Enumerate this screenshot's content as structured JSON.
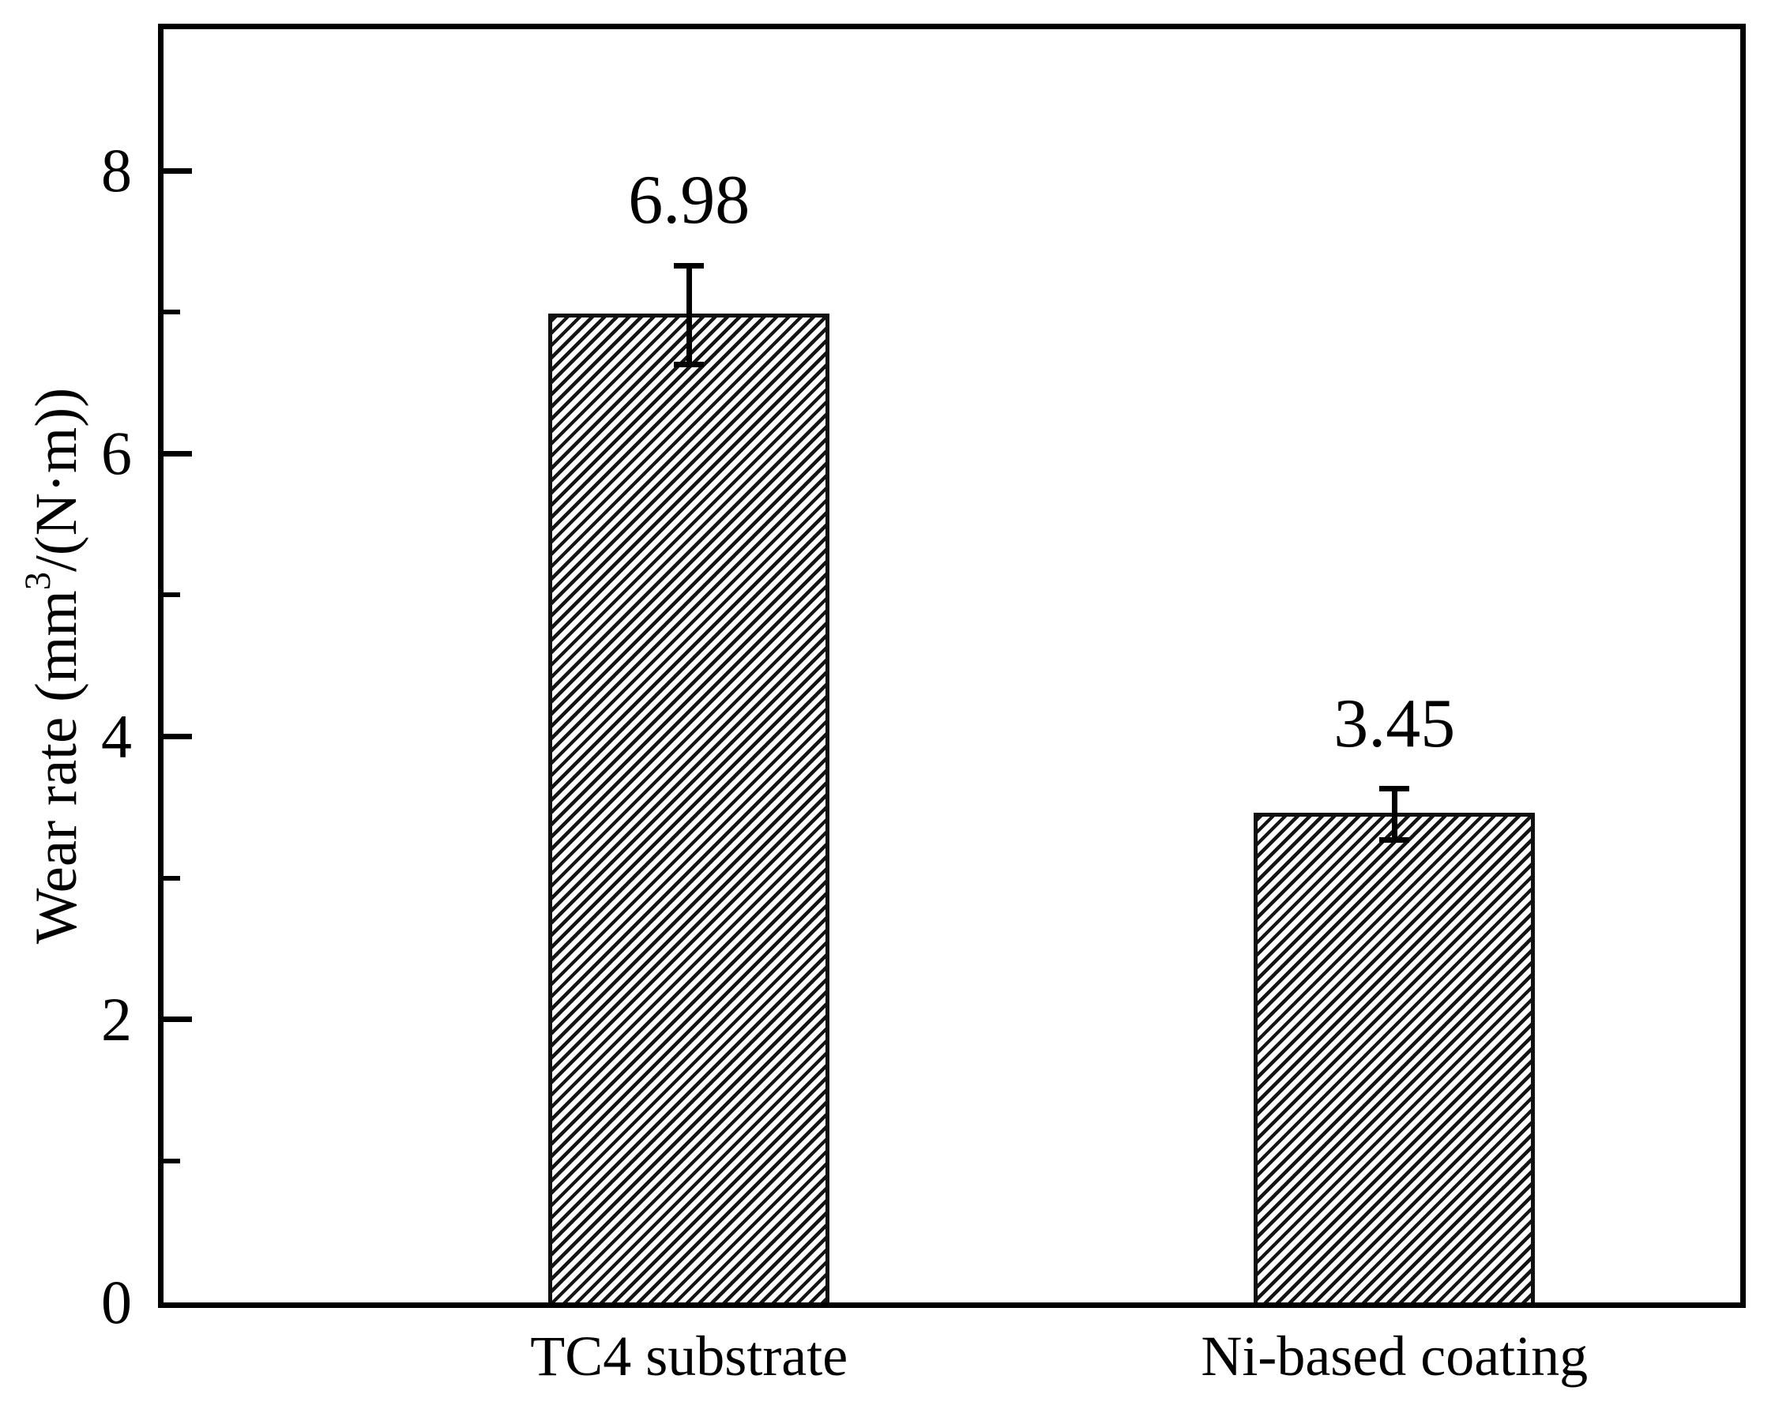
{
  "chart_data": {
    "type": "bar",
    "title": "",
    "categories": [
      "TC4 substrate",
      "Ni-based coating"
    ],
    "values": [
      6.98,
      3.45
    ],
    "error_bars": [
      0.35,
      0.18
    ],
    "data_labels": [
      "6.98",
      "3.45"
    ],
    "xlabel": "",
    "ylabel": "Wear rate (mm³/(N·m))",
    "ylabel_parts": {
      "prefix": "Wear rate (mm",
      "superscript": "3",
      "suffix": "/(N·m))"
    },
    "ylim": [
      0,
      9
    ],
    "yticks": [
      0,
      2,
      4,
      6,
      8
    ],
    "ytick_labels": [
      "0",
      "2",
      "4",
      "6",
      "8"
    ],
    "minor_yticks": [
      1,
      3,
      5,
      7
    ],
    "grid": false,
    "legend_position": "none",
    "bar_style": {
      "fill": "#ffffff",
      "hatch": "diagonal-forward",
      "hatch_color": "#141414",
      "edge_color": "#111111"
    },
    "colors": {
      "axis": "#000000",
      "text": "#000000",
      "background": "#ffffff"
    }
  }
}
